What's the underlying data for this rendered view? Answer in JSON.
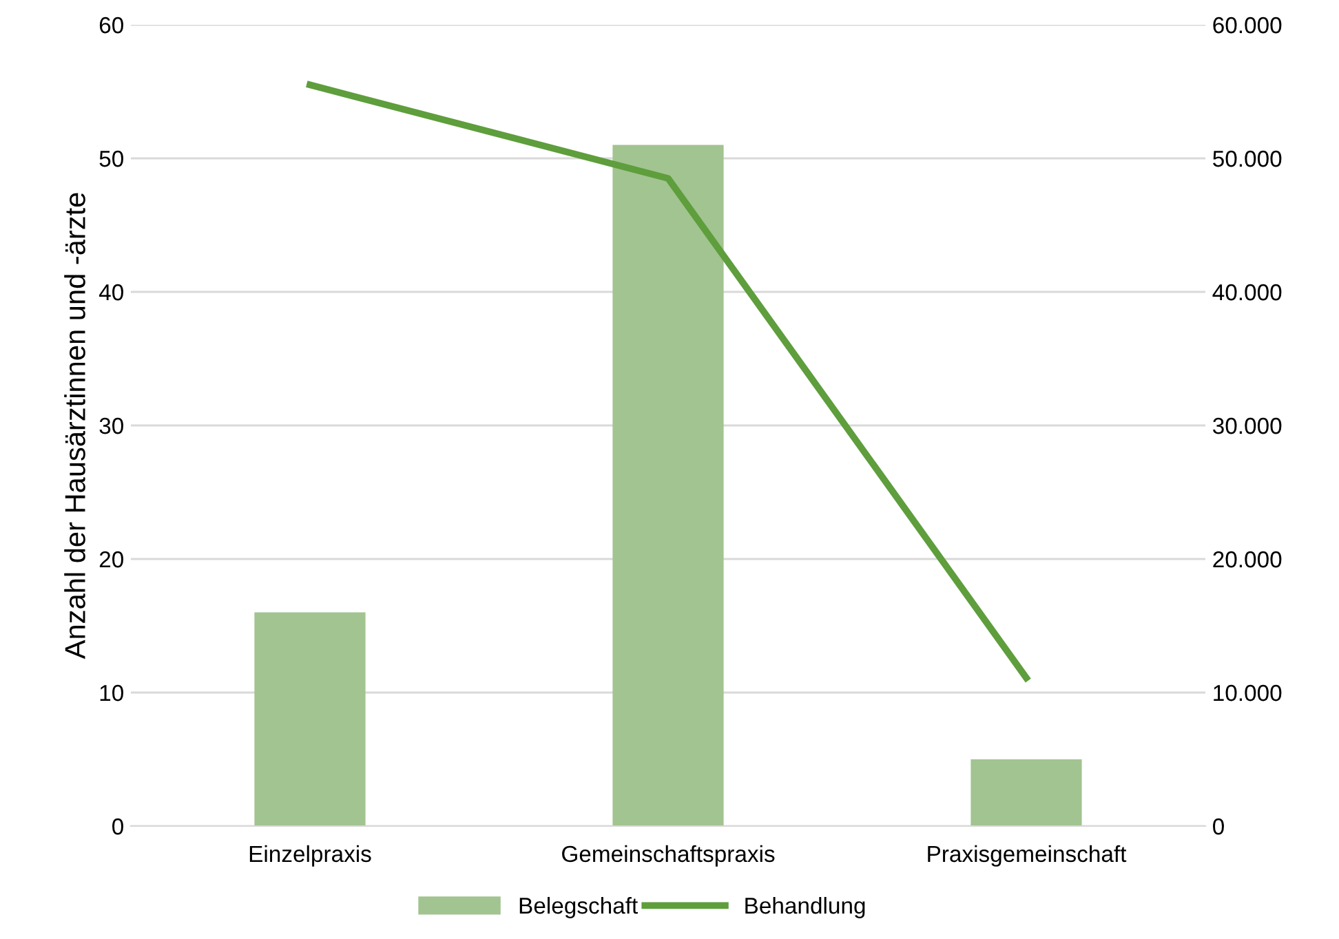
{
  "chart_data": {
    "type": "bar",
    "ylabel": "Anzahl der Hausärztinnen und -ärzte",
    "categories": [
      "Einzelpraxis",
      "Gemeinschaftspraxis",
      "Praxisgemeinschaft"
    ],
    "series": [
      {
        "name": "Belegschaft",
        "color": "#a2c490",
        "values": [
          16,
          51,
          5
        ]
      },
      {
        "name": "Behandlung",
        "type": "line",
        "axis": "y2",
        "color": "#5e9e3c",
        "values": [
          55500,
          48500,
          11100
        ]
      }
    ],
    "ylim": [
      0,
      60
    ],
    "yticks": [
      0,
      10,
      20,
      30,
      40,
      50,
      60
    ],
    "y2lim": [
      0,
      60000
    ],
    "y2ticks": [
      0,
      {
        "value": 10000,
        "label": "10.000"
      },
      {
        "value": 20000,
        "label": "20.000"
      },
      {
        "value": 30000,
        "label": "30.000"
      },
      {
        "value": 40000,
        "label": "40.000"
      },
      {
        "value": 50000,
        "label": "50.000"
      },
      {
        "value": 60000,
        "label": "60.000"
      }
    ],
    "grid": "y",
    "legend": "bottom",
    "marker": "none",
    "line_style": "solid"
  }
}
